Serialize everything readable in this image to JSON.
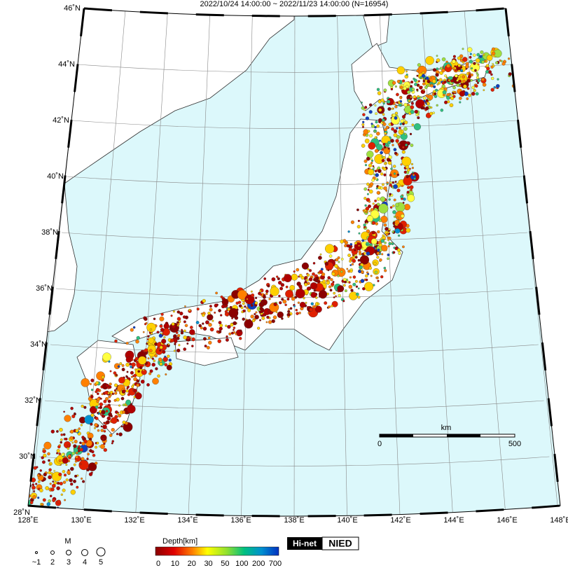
{
  "title": "2022/10/24 14:00:00 ~ 2022/11/23 14:00:00 (N=16954)",
  "latitude_labels": [
    "46˚N",
    "44˚N",
    "42˚N",
    "40˚N",
    "38˚N",
    "36˚N",
    "34˚N",
    "32˚N",
    "30˚N",
    "28˚N"
  ],
  "longitude_labels": [
    "128˚E",
    "130˚E",
    "132˚E",
    "134˚E",
    "136˚E",
    "138˚E",
    "140˚E",
    "142˚E",
    "144˚E",
    "146˚E",
    "148˚E"
  ],
  "scale_bar": {
    "unit": "km",
    "ticks": [
      "0",
      "500"
    ]
  },
  "magnitude_legend": {
    "title": "M",
    "labels": [
      "~1",
      "2",
      "3",
      "4",
      "5"
    ]
  },
  "depth_legend": {
    "title": "Depth[km]",
    "ticks": [
      0,
      10,
      20,
      30,
      50,
      100,
      200,
      700
    ]
  },
  "logo": {
    "left": "Hi-net",
    "right": "NIED"
  }
}
